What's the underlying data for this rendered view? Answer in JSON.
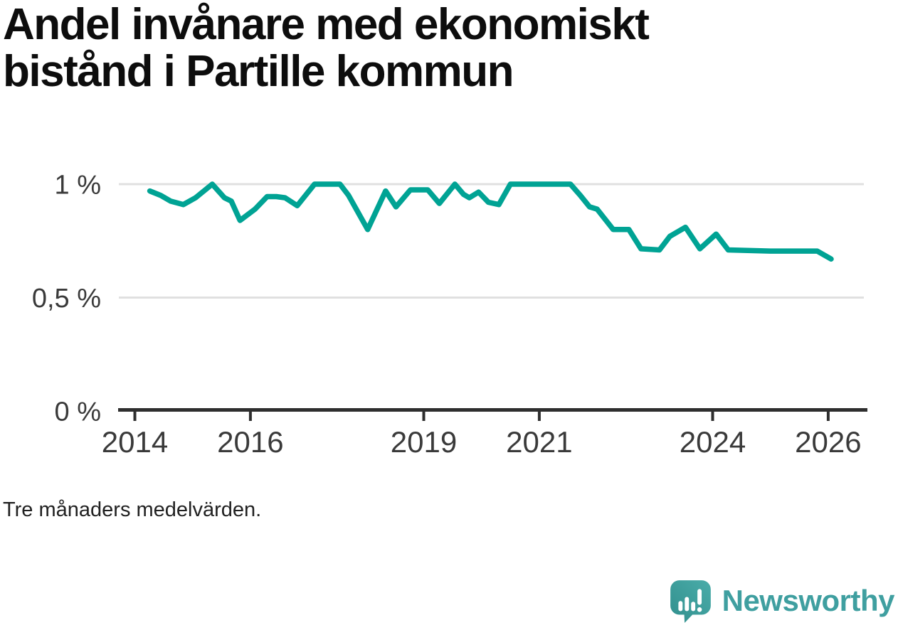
{
  "page": {
    "title": "Andel invånare med ekonomiskt bistånd i Partille kommun",
    "footnote": "Tre månaders medelvärden."
  },
  "branding": {
    "wordmark": "Newsworthy",
    "icon": "newsworthy-speech-bubble-chart-icon"
  },
  "colors": {
    "line": "#00a394",
    "grid": "#e0e0e0",
    "axis": "#2e2e2e",
    "tick_label": "#3a3a3a",
    "title_text": "#0d0d0d",
    "footnote_text": "#212121",
    "brand_teal": "#3f9fa0",
    "logo_bubble_light": "#4aaca9",
    "logo_bubble_dark": "#318f8d",
    "logo_glyph": "#ffffff"
  },
  "chart_data": {
    "type": "line",
    "title": "Andel invånare med ekonomiskt bistånd i Partille kommun",
    "subtitle": "",
    "xlabel": "",
    "ylabel": "",
    "unit": "%",
    "grid": "horizontal",
    "legend_position": "none",
    "xlim": [
      2013.73,
      2026.65
    ],
    "ylim": [
      0,
      1.09
    ],
    "x_ticks": [
      {
        "value": 2014,
        "label": "2014"
      },
      {
        "value": 2016,
        "label": "2016"
      },
      {
        "value": 2019,
        "label": "2019"
      },
      {
        "value": 2021,
        "label": "2021"
      },
      {
        "value": 2024,
        "label": "2024"
      },
      {
        "value": 2026,
        "label": "2026"
      }
    ],
    "y_ticks": [
      {
        "value": 1,
        "label": "1 %"
      },
      {
        "value": 0.5,
        "label": "0,5 %"
      },
      {
        "value": 0,
        "label": "0 %"
      }
    ],
    "series": [
      {
        "name": "Andel invånare med ekonomiskt bistånd (%), tre månaders medelvärde",
        "points": [
          [
            2014.26,
            0.97
          ],
          [
            2014.45,
            0.95
          ],
          [
            2014.62,
            0.925
          ],
          [
            2014.84,
            0.91
          ],
          [
            2015.05,
            0.94
          ],
          [
            2015.34,
            1.0
          ],
          [
            2015.55,
            0.94
          ],
          [
            2015.67,
            0.925
          ],
          [
            2015.82,
            0.84
          ],
          [
            2016.08,
            0.89
          ],
          [
            2016.29,
            0.945
          ],
          [
            2016.45,
            0.945
          ],
          [
            2016.6,
            0.94
          ],
          [
            2016.81,
            0.905
          ],
          [
            2017.11,
            1.0
          ],
          [
            2017.55,
            1.0
          ],
          [
            2017.7,
            0.95
          ],
          [
            2018.03,
            0.8
          ],
          [
            2018.34,
            0.97
          ],
          [
            2018.52,
            0.9
          ],
          [
            2018.77,
            0.975
          ],
          [
            2019.07,
            0.975
          ],
          [
            2019.27,
            0.915
          ],
          [
            2019.54,
            1.0
          ],
          [
            2019.69,
            0.955
          ],
          [
            2019.79,
            0.94
          ],
          [
            2019.95,
            0.965
          ],
          [
            2020.12,
            0.92
          ],
          [
            2020.3,
            0.91
          ],
          [
            2020.5,
            1.0
          ],
          [
            2021.54,
            1.0
          ],
          [
            2021.71,
            0.95
          ],
          [
            2021.87,
            0.9
          ],
          [
            2022.0,
            0.89
          ],
          [
            2022.28,
            0.8
          ],
          [
            2022.55,
            0.8
          ],
          [
            2022.76,
            0.715
          ],
          [
            2023.08,
            0.71
          ],
          [
            2023.26,
            0.77
          ],
          [
            2023.53,
            0.81
          ],
          [
            2023.78,
            0.715
          ],
          [
            2024.06,
            0.78
          ],
          [
            2024.27,
            0.71
          ],
          [
            2025.0,
            0.705
          ],
          [
            2025.81,
            0.705
          ],
          [
            2026.05,
            0.67
          ]
        ]
      }
    ]
  }
}
